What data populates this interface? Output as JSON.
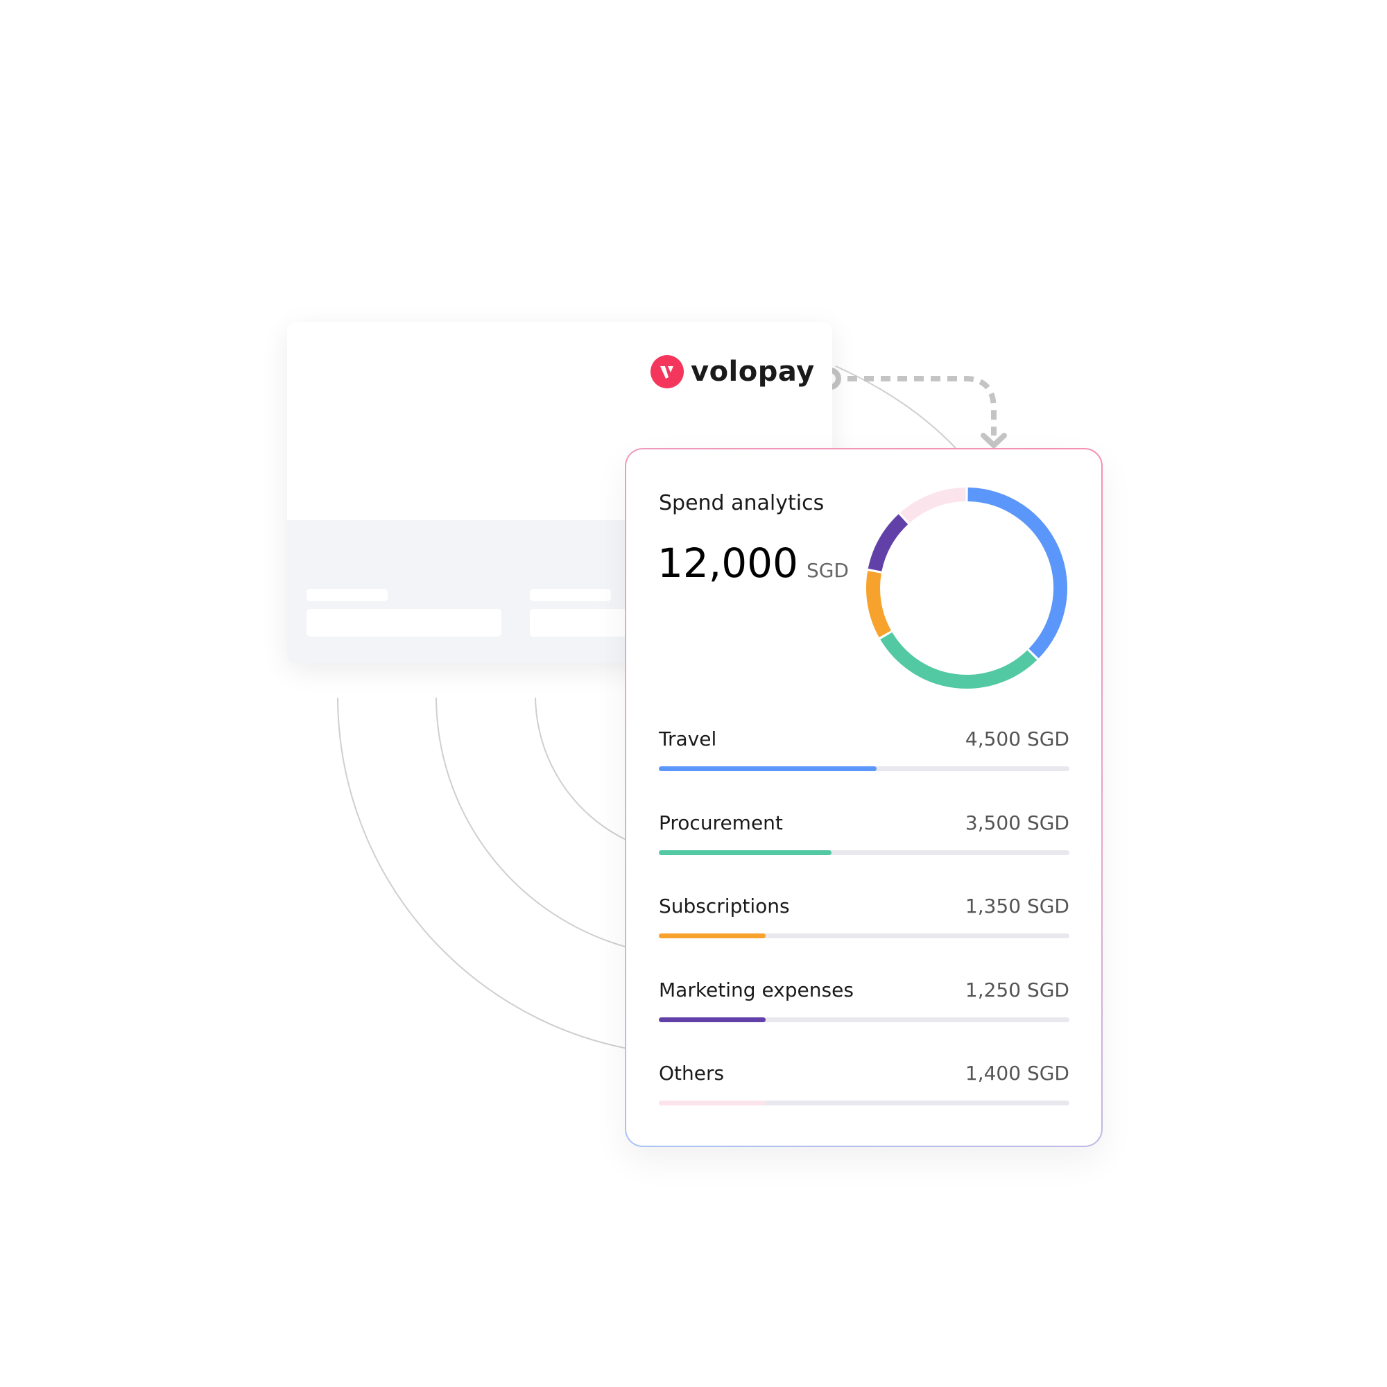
{
  "brand": {
    "name": "volopay",
    "color": "#f5365c"
  },
  "analytics": {
    "title": "Spend analytics",
    "total": "12,000",
    "currency": "SGD",
    "items": [
      {
        "label": "Travel",
        "value": "4,500 SGD",
        "amount": 4500,
        "fill": 0.53,
        "color": "#5b96fa"
      },
      {
        "label": "Procurement",
        "value": "3,500 SGD",
        "amount": 3500,
        "fill": 0.42,
        "color": "#52c9a2"
      },
      {
        "label": "Subscriptions",
        "value": "1,350 SGD",
        "amount": 1350,
        "fill": 0.26,
        "color": "#f7a22c"
      },
      {
        "label": "Marketing expenses",
        "value": "1,250 SGD",
        "amount": 1250,
        "fill": 0.26,
        "color": "#6140a8"
      },
      {
        "label": "Others",
        "value": "1,400 SGD",
        "amount": 1400,
        "fill": 0.26,
        "color": "#fce4ec"
      }
    ]
  }
}
